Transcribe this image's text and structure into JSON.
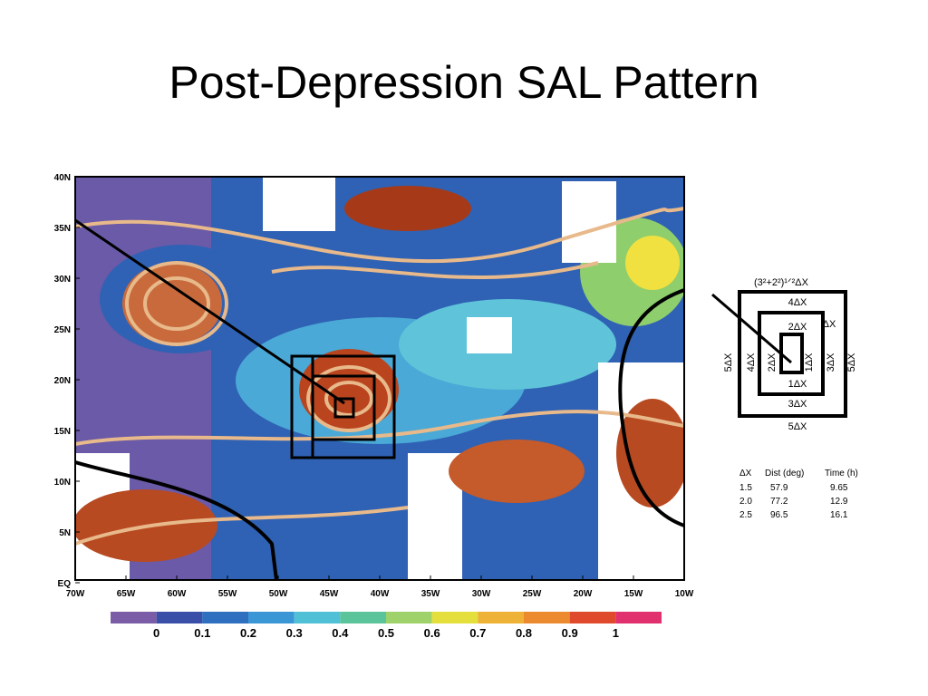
{
  "title": "Post-Depression SAL Pattern",
  "map": {
    "lat_labels": [
      "40N",
      "35N",
      "30N",
      "25N",
      "20N",
      "15N",
      "10N",
      "5N",
      "EQ"
    ],
    "lon_labels": [
      "70W",
      "65W",
      "60W",
      "55W",
      "50W",
      "45W",
      "40W",
      "35W",
      "30W",
      "25W",
      "20W",
      "15W",
      "10W"
    ],
    "colorbar_labels": [
      "0",
      "0.1",
      "0.2",
      "0.3",
      "0.4",
      "0.5",
      "0.6",
      "0.7",
      "0.8",
      "0.9",
      "1"
    ]
  },
  "diagram": {
    "diagonal": "(3²+2²)¹ᐟ²ΔX",
    "top_4": "4ΔX",
    "top_2": "2ΔX",
    "side_1": "ΔX",
    "left_5": "5ΔX",
    "left_4": "4ΔX",
    "left_2": "2ΔX",
    "right_1": "1ΔX",
    "right_3": "3ΔX",
    "right_5": "5ΔX",
    "bottom_1": "1ΔX",
    "bottom_3": "3ΔX",
    "bottom_5": "5ΔX"
  },
  "table": {
    "header": [
      "ΔX",
      "Dist (deg)",
      "Time (h)"
    ],
    "rows": [
      [
        "1.5",
        "57.9",
        "9.65"
      ],
      [
        "2.0",
        "77.2",
        "12.9"
      ],
      [
        "2.5",
        "96.5",
        "16.1"
      ]
    ]
  }
}
